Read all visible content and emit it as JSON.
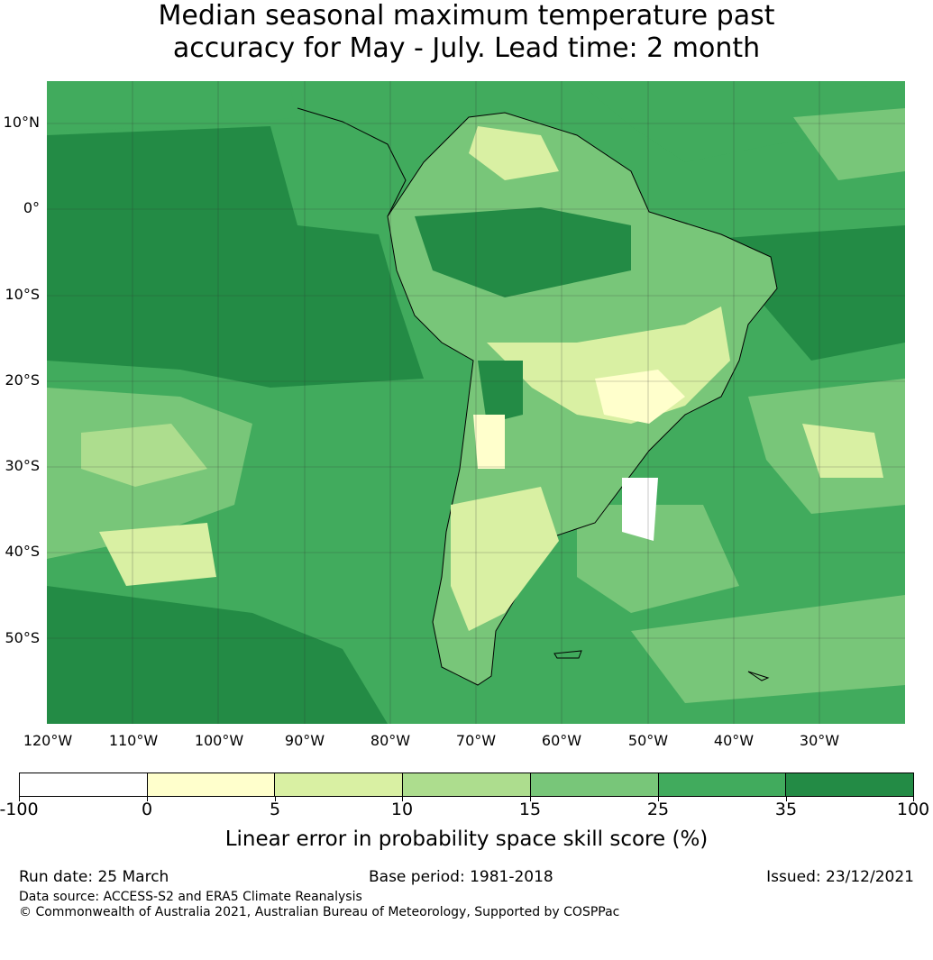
{
  "title": {
    "line1": "Median seasonal maximum temperature past",
    "line2": "accuracy for May - July. Lead time: 2 month"
  },
  "map": {
    "lat_labels": [
      "10°N",
      "0°",
      "10°S",
      "20°S",
      "30°S",
      "40°S",
      "50°S"
    ],
    "lon_labels": [
      "120°W",
      "110°W",
      "100°W",
      "90°W",
      "80°W",
      "70°W",
      "60°W",
      "50°W",
      "40°W",
      "30°W"
    ],
    "region": "South America",
    "gridlines": true,
    "ocean_dominant_color": "#238b45",
    "land_low_skill_areas": [
      "Patagonia",
      "Paraguay / northern Argentina",
      "southern Brazil",
      "Venezuela / Guyana highlands"
    ]
  },
  "legend": {
    "tick_labels": [
      "-100",
      "0",
      "5",
      "10",
      "15",
      "25",
      "35",
      "100"
    ],
    "colors": [
      "#ffffff",
      "#ffffcc",
      "#d9f0a3",
      "#addd8e",
      "#78c679",
      "#41ab5d",
      "#238b45"
    ],
    "label": "Linear error in probability space skill score (%)"
  },
  "footer": {
    "run_date": "Run date: 25 March",
    "base_period": "Base period: 1981-2018",
    "issued": "Issued: 23/12/2021",
    "source": "Data source: ACCESS-S2 and ERA5 Climate Reanalysis",
    "copyright": "© Commonwealth of Australia 2021, Australian Bureau of Meteorology, Supported by COSPPac"
  }
}
